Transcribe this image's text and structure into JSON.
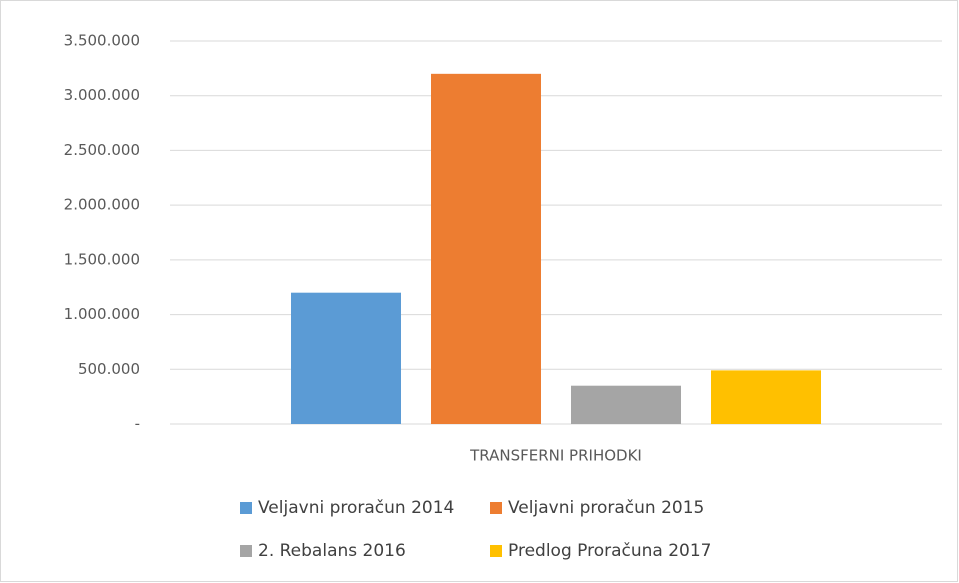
{
  "chart_data": {
    "type": "bar",
    "categories": [
      "TRANSFERNI PRIHODKI"
    ],
    "series": [
      {
        "name": "Veljavni proračun 2014",
        "color": "#5b9bd5",
        "values": [
          1200000
        ]
      },
      {
        "name": "Veljavni proračun 2015",
        "color": "#ed7d31",
        "values": [
          3200000
        ]
      },
      {
        "name": "2. Rebalans 2016",
        "color": "#a5a5a5",
        "values": [
          350000
        ]
      },
      {
        "name": "Predlog Proračuna 2017",
        "color": "#ffc000",
        "values": [
          490000
        ]
      }
    ],
    "ylim": [
      0,
      3500000
    ],
    "yticks": [
      {
        "value": 0,
        "label": "-"
      },
      {
        "value": 500000,
        "label": "500.000"
      },
      {
        "value": 1000000,
        "label": "1.000.000"
      },
      {
        "value": 1500000,
        "label": "1.500.000"
      },
      {
        "value": 2000000,
        "label": "2.000.000"
      },
      {
        "value": 2500000,
        "label": "2.500.000"
      },
      {
        "value": 3000000,
        "label": "3.000.000"
      },
      {
        "value": 3500000,
        "label": "3.500.000"
      }
    ],
    "grid": true,
    "legend": "bottom"
  }
}
